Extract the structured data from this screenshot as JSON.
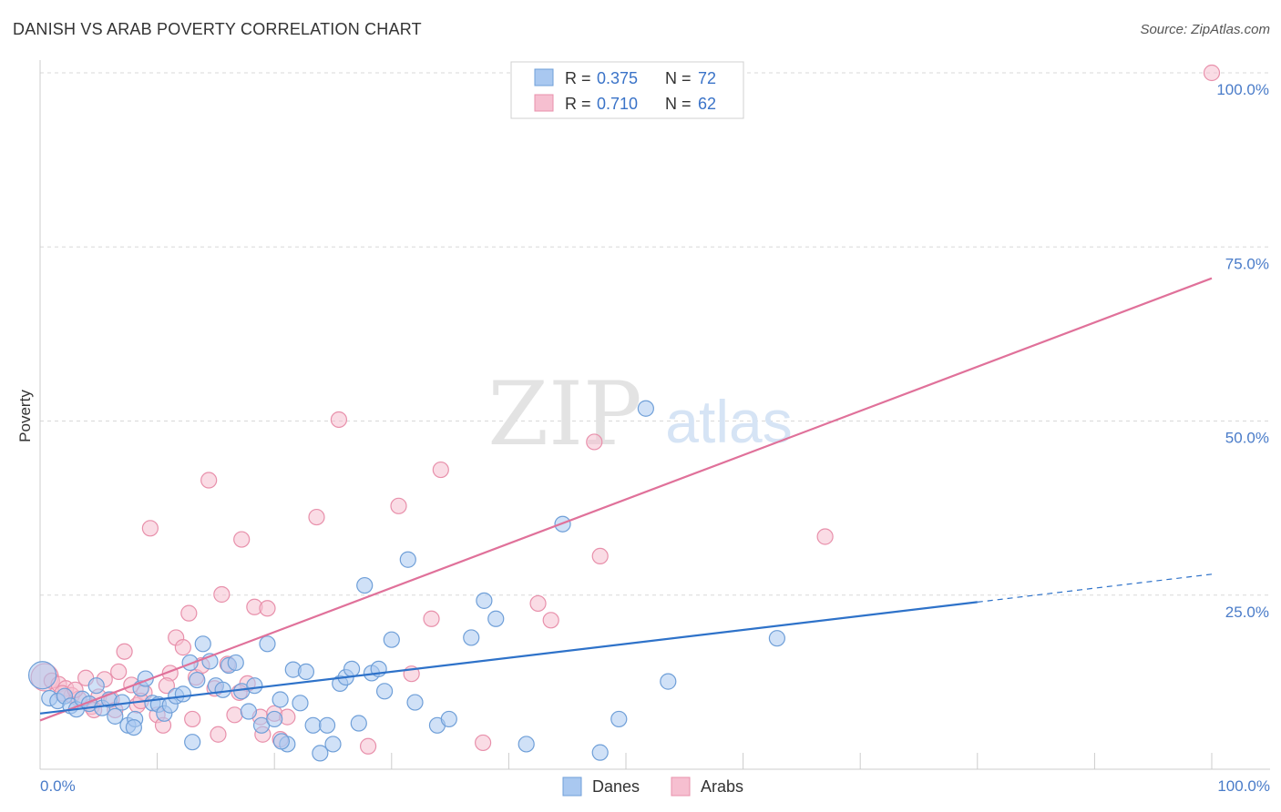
{
  "title": "DANISH VS ARAB POVERTY CORRELATION CHART",
  "source": "Source: ZipAtlas.com",
  "watermark": {
    "zip": "ZIP",
    "atlas": "atlas"
  },
  "colors": {
    "danes_fill": "#a9c8f0",
    "danes_stroke": "#6f9fd8",
    "danes_line": "#2e72c9",
    "arabs_fill": "#f6bfd0",
    "arabs_stroke": "#e890ab",
    "arabs_line": "#e0719a",
    "axis_label": "#4a7cc9",
    "grid": "#d8d8d8"
  },
  "legend": [
    {
      "r_label": "R =",
      "r_value": "0.375",
      "n_label": "N =",
      "n_value": "72"
    },
    {
      "r_label": "R =",
      "r_value": "0.710",
      "n_label": "N =",
      "n_value": "62"
    }
  ],
  "chart_data": {
    "type": "scatter",
    "title": "DANISH VS ARAB POVERTY CORRELATION CHART",
    "xlabel": "",
    "ylabel": "Poverty",
    "xlim": [
      0,
      100
    ],
    "ylim": [
      0,
      100
    ],
    "x_tick_labels": [
      "0.0%",
      "100.0%"
    ],
    "y_tick_labels": [
      "25.0%",
      "50.0%",
      "75.0%",
      "100.0%"
    ],
    "y_ticks": [
      25,
      50,
      75,
      100
    ],
    "legend_position": "bottom",
    "series": [
      {
        "name": "Danes",
        "r": 0.375,
        "n": 72,
        "trend": {
          "x0": 0,
          "y0": 8.0,
          "x1": 80,
          "y1": 24.0,
          "dash_to_x": 100,
          "dash_to_y": 28.0
        },
        "points": [
          [
            0.2,
            13.5
          ],
          [
            0.8,
            10.2
          ],
          [
            1.5,
            9.8
          ],
          [
            2.1,
            10.5
          ],
          [
            2.6,
            9.1
          ],
          [
            3.1,
            8.6
          ],
          [
            3.6,
            10.1
          ],
          [
            4.2,
            9.4
          ],
          [
            4.8,
            12.0
          ],
          [
            5.3,
            8.8
          ],
          [
            5.9,
            10.0
          ],
          [
            6.4,
            7.6
          ],
          [
            7.0,
            9.6
          ],
          [
            7.5,
            6.3
          ],
          [
            8.1,
            7.2
          ],
          [
            8.6,
            11.6
          ],
          [
            9.0,
            13.0
          ],
          [
            9.6,
            9.5
          ],
          [
            10.1,
            9.3
          ],
          [
            10.6,
            8.0
          ],
          [
            11.1,
            9.2
          ],
          [
            11.6,
            10.5
          ],
          [
            12.2,
            10.8
          ],
          [
            12.8,
            15.3
          ],
          [
            13.4,
            12.8
          ],
          [
            13.9,
            18.0
          ],
          [
            14.5,
            15.5
          ],
          [
            15.0,
            12.0
          ],
          [
            15.6,
            11.4
          ],
          [
            16.1,
            14.9
          ],
          [
            16.7,
            15.3
          ],
          [
            17.2,
            11.2
          ],
          [
            17.8,
            8.3
          ],
          [
            18.3,
            12.0
          ],
          [
            18.9,
            6.3
          ],
          [
            19.4,
            18.0
          ],
          [
            20.0,
            7.2
          ],
          [
            20.5,
            10.0
          ],
          [
            21.1,
            3.6
          ],
          [
            21.6,
            14.3
          ],
          [
            22.2,
            9.5
          ],
          [
            22.7,
            14.0
          ],
          [
            23.3,
            6.3
          ],
          [
            23.9,
            2.3
          ],
          [
            24.5,
            6.3
          ],
          [
            25.0,
            3.6
          ],
          [
            25.6,
            12.3
          ],
          [
            26.1,
            13.2
          ],
          [
            26.6,
            14.4
          ],
          [
            27.2,
            6.6
          ],
          [
            27.7,
            26.4
          ],
          [
            28.3,
            13.8
          ],
          [
            28.9,
            14.4
          ],
          [
            29.4,
            11.2
          ],
          [
            30.0,
            18.6
          ],
          [
            31.4,
            30.1
          ],
          [
            32.0,
            9.6
          ],
          [
            33.9,
            6.3
          ],
          [
            34.9,
            7.2
          ],
          [
            36.8,
            18.9
          ],
          [
            37.9,
            24.2
          ],
          [
            38.9,
            21.6
          ],
          [
            41.5,
            3.6
          ],
          [
            44.6,
            35.2
          ],
          [
            47.8,
            2.4
          ],
          [
            49.4,
            7.2
          ],
          [
            51.7,
            51.8
          ],
          [
            53.6,
            12.6
          ],
          [
            62.9,
            18.8
          ],
          [
            13.0,
            3.9
          ],
          [
            20.6,
            4.0
          ],
          [
            8.0,
            6.0
          ]
        ]
      },
      {
        "name": "Arabs",
        "r": 0.71,
        "n": 62,
        "trend": {
          "x0": 0,
          "y0": 7.0,
          "x1": 100,
          "y1": 70.5
        },
        "points": [
          [
            0.4,
            13.2
          ],
          [
            1.0,
            12.7
          ],
          [
            1.6,
            12.2
          ],
          [
            2.2,
            11.6
          ],
          [
            2.7,
            10.6
          ],
          [
            3.3,
            10.1
          ],
          [
            3.9,
            13.1
          ],
          [
            4.4,
            9.0
          ],
          [
            5.0,
            10.4
          ],
          [
            5.5,
            12.9
          ],
          [
            6.1,
            10.0
          ],
          [
            6.7,
            14.0
          ],
          [
            7.2,
            16.9
          ],
          [
            7.8,
            12.1
          ],
          [
            8.3,
            9.2
          ],
          [
            8.9,
            11.0
          ],
          [
            9.4,
            34.6
          ],
          [
            10.0,
            7.8
          ],
          [
            10.5,
            6.3
          ],
          [
            11.1,
            13.8
          ],
          [
            11.6,
            18.9
          ],
          [
            12.2,
            17.5
          ],
          [
            12.7,
            22.4
          ],
          [
            13.3,
            13.2
          ],
          [
            13.8,
            14.9
          ],
          [
            14.4,
            41.5
          ],
          [
            14.9,
            11.6
          ],
          [
            15.5,
            25.1
          ],
          [
            16.0,
            15.1
          ],
          [
            16.6,
            7.8
          ],
          [
            17.2,
            33.0
          ],
          [
            17.7,
            12.3
          ],
          [
            18.3,
            23.3
          ],
          [
            18.8,
            7.5
          ],
          [
            19.4,
            23.1
          ],
          [
            20.0,
            8.0
          ],
          [
            20.5,
            4.3
          ],
          [
            21.1,
            7.5
          ],
          [
            23.6,
            36.2
          ],
          [
            25.5,
            50.2
          ],
          [
            28.0,
            3.3
          ],
          [
            30.6,
            37.8
          ],
          [
            31.7,
            13.7
          ],
          [
            33.4,
            21.6
          ],
          [
            34.2,
            43.0
          ],
          [
            37.8,
            3.8
          ],
          [
            42.5,
            23.8
          ],
          [
            43.6,
            21.4
          ],
          [
            47.3,
            47.0
          ],
          [
            47.8,
            30.6
          ],
          [
            67.0,
            33.4
          ],
          [
            100.0,
            100.0
          ],
          [
            1.9,
            10.9
          ],
          [
            3.0,
            11.4
          ],
          [
            4.6,
            8.5
          ],
          [
            6.4,
            8.5
          ],
          [
            8.6,
            9.8
          ],
          [
            10.8,
            12.0
          ],
          [
            13.0,
            7.2
          ],
          [
            15.2,
            5.0
          ],
          [
            17.0,
            11.0
          ],
          [
            19.0,
            5.0
          ]
        ]
      }
    ]
  }
}
